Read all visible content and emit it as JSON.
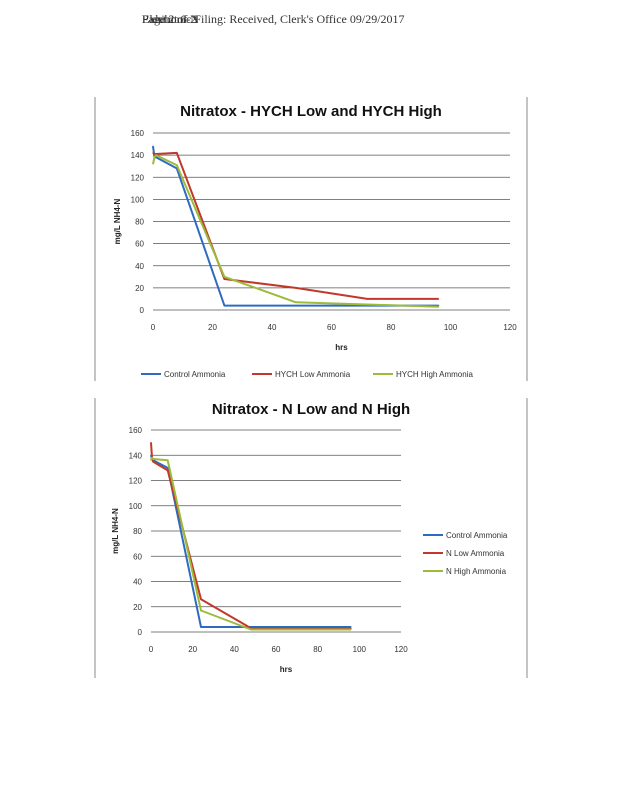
{
  "header": {
    "lines": [
      "Electronic Filing: Received, Clerk's Office 09/29/2017",
      "Exhibit 6-N",
      "Page 2 of 2"
    ]
  },
  "chart_data": [
    {
      "type": "line",
      "title": "Nitratox - HYCH Low and HYCH High",
      "xlabel": "hrs",
      "ylabel": "mg/L NH4-N",
      "xlim": [
        0,
        120
      ],
      "ylim": [
        0,
        160
      ],
      "xticks": [
        0,
        20,
        40,
        60,
        80,
        100,
        120
      ],
      "yticks": [
        0,
        20,
        40,
        60,
        80,
        100,
        120,
        140,
        160
      ],
      "grid": true,
      "legend_position": "bottom",
      "series": [
        {
          "name": "Control Ammonia",
          "color": "#2e6bc0",
          "x": [
            0,
            0.5,
            1,
            8,
            24,
            48,
            72,
            96
          ],
          "y": [
            148,
            138,
            138,
            128,
            4,
            4,
            4,
            4
          ]
        },
        {
          "name": "HYCH Low Ammonia",
          "color": "#c0392b",
          "x": [
            0,
            0.5,
            1,
            8,
            24,
            48,
            72,
            96
          ],
          "y": [
            142,
            141,
            141,
            142,
            28,
            20,
            10,
            10
          ]
        },
        {
          "name": "HYCH High Ammonia",
          "color": "#9bbb3b",
          "x": [
            0,
            0.5,
            1,
            8,
            24,
            48,
            72,
            96
          ],
          "y": [
            132,
            138,
            140,
            131,
            30,
            7,
            5,
            3
          ]
        }
      ]
    },
    {
      "type": "line",
      "title": "Nitratox - N Low and N High",
      "xlabel": "hrs",
      "ylabel": "mg/L NH4-N",
      "xlim": [
        0,
        120
      ],
      "ylim": [
        0,
        160
      ],
      "xticks": [
        0,
        20,
        40,
        60,
        80,
        100,
        120
      ],
      "yticks": [
        0,
        20,
        40,
        60,
        80,
        100,
        120,
        140,
        160
      ],
      "grid": true,
      "legend_position": "right",
      "series": [
        {
          "name": "Control Ammonia",
          "color": "#2e6bc0",
          "x": [
            0,
            0.5,
            1,
            8,
            24,
            48,
            72,
            96
          ],
          "y": [
            140,
            137,
            136,
            130,
            4,
            4,
            4,
            4
          ]
        },
        {
          "name": "N Low Ammonia",
          "color": "#c0392b",
          "x": [
            0,
            0.5,
            1,
            8,
            24,
            48,
            72,
            96
          ],
          "y": [
            150,
            138,
            135,
            128,
            26,
            3,
            3,
            3
          ]
        },
        {
          "name": "N High Ammonia",
          "color": "#9bbb3b",
          "x": [
            0,
            0.5,
            1,
            8,
            24,
            48,
            72,
            96
          ],
          "y": [
            136,
            138,
            137,
            136,
            17,
            2,
            2,
            2
          ]
        }
      ]
    }
  ]
}
